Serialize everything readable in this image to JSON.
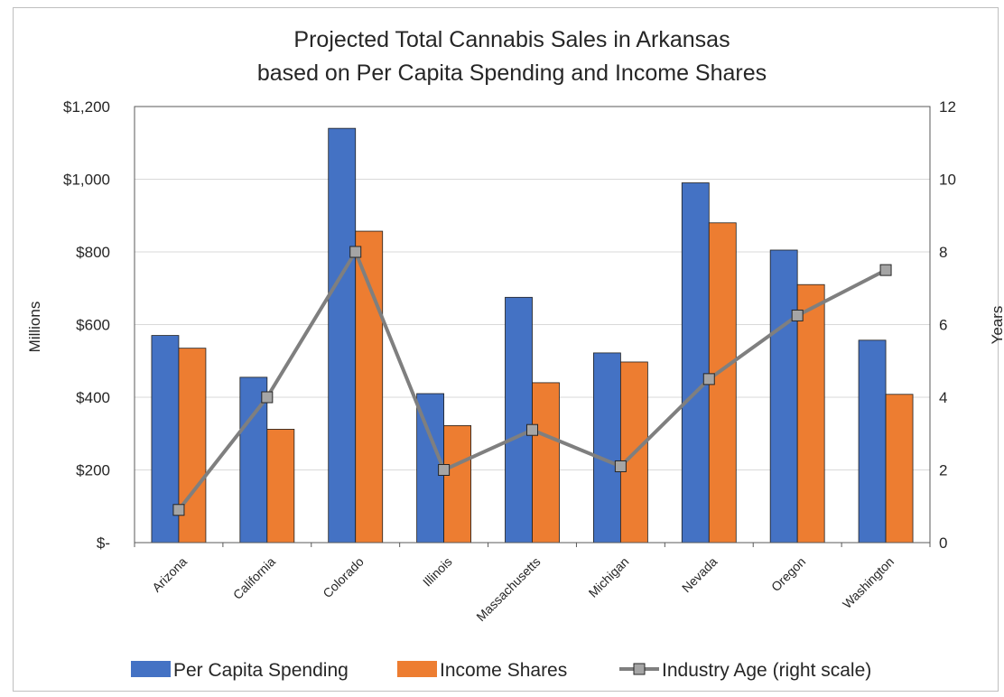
{
  "chart_data": {
    "type": "bar",
    "title_lines": [
      "Projected Total Cannabis Sales in Arkansas",
      "based on Per Capita Spending and Income Shares"
    ],
    "categories": [
      "Arizona",
      "California",
      "Colorado",
      "Illinois",
      "Massachusetts",
      "Michigan",
      "Nevada",
      "Oregon",
      "Washington"
    ],
    "series": [
      {
        "name": "Per Capita Spending",
        "kind": "bar",
        "axis": "left",
        "color": "#4472c4",
        "values": [
          570,
          455,
          1140,
          410,
          675,
          522,
          990,
          805,
          557
        ]
      },
      {
        "name": "Income Shares",
        "kind": "bar",
        "axis": "left",
        "color": "#ed7d31",
        "values": [
          535,
          312,
          857,
          322,
          440,
          497,
          880,
          710,
          408
        ]
      },
      {
        "name": "Industry Age (right scale)",
        "kind": "line",
        "axis": "right",
        "color": "#7f7f7f",
        "marker_color": "#a5a5a5",
        "values": [
          0.9,
          4.0,
          8.0,
          2.0,
          3.1,
          2.1,
          4.5,
          6.25,
          7.5
        ]
      }
    ],
    "ylabel": "Millions",
    "y2label": "Years",
    "ylim": [
      0,
      1200
    ],
    "y2lim": [
      0,
      12
    ],
    "yticks": [
      0,
      200,
      400,
      600,
      800,
      1000,
      1200
    ],
    "ytick_labels": [
      "$-",
      "$200",
      "$400",
      "$600",
      "$800",
      "$1,000",
      "$1,200"
    ],
    "y2ticks": [
      0,
      2,
      4,
      6,
      8,
      10,
      12
    ],
    "y2tick_labels": [
      "0",
      "2",
      "4",
      "6",
      "8",
      "10",
      "12"
    ],
    "grid": true,
    "legend_position": "bottom"
  }
}
